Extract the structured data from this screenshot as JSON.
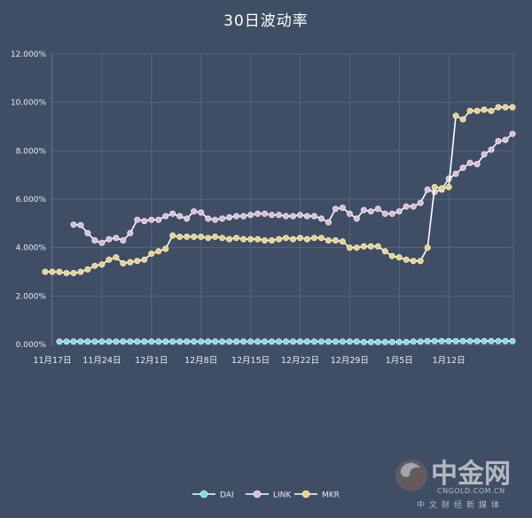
{
  "chart_data": {
    "type": "line",
    "title": "30日波动率",
    "xlabel": "",
    "ylabel": "",
    "ylim": [
      0,
      12
    ],
    "y_ticks": [
      "0.000%",
      "2.000%",
      "4.000%",
      "6.000%",
      "8.000%",
      "10.000%",
      "12.000%"
    ],
    "x_ticks": [
      "11月17日",
      "11月24日",
      "12月1日",
      "12月8日",
      "12月15日",
      "12月22日",
      "12月29日",
      "1月5日",
      "1月12日"
    ],
    "grid": true,
    "legend_position": "bottom",
    "colors": {
      "DAI": "#7fdde0",
      "LINK": "#dcbcd6",
      "MKR": "#ead37a"
    },
    "series": [
      {
        "name": "DAI",
        "values": [
          0.12,
          0.12,
          0.12,
          0.12,
          0.12,
          0.12,
          0.12,
          0.12,
          0.12,
          0.12,
          0.12,
          0.12,
          0.12,
          0.12,
          0.12,
          0.12,
          0.12,
          0.12,
          0.12,
          0.12,
          0.12,
          0.12,
          0.12,
          0.12,
          0.12,
          0.12,
          0.12,
          0.12,
          0.12,
          0.12,
          0.12,
          0.12,
          0.12,
          0.12,
          0.12,
          0.12,
          0.12,
          0.12,
          0.12,
          0.12,
          0.12,
          0.12,
          0.12,
          0.1,
          0.1,
          0.1,
          0.1,
          0.1,
          0.1,
          0.1,
          0.12,
          0.12,
          0.14,
          0.14,
          0.14,
          0.14,
          0.14,
          0.14,
          0.14,
          0.14,
          0.14,
          0.14,
          0.14,
          0.14,
          0.14
        ]
      },
      {
        "name": "LINK",
        "values": [
          4.95,
          4.93,
          4.6,
          4.3,
          4.2,
          4.35,
          4.4,
          4.3,
          4.6,
          5.15,
          5.1,
          5.15,
          5.15,
          5.3,
          5.4,
          5.3,
          5.2,
          5.5,
          5.45,
          5.2,
          5.15,
          5.2,
          5.25,
          5.3,
          5.3,
          5.35,
          5.4,
          5.4,
          5.35,
          5.35,
          5.3,
          5.3,
          5.35,
          5.3,
          5.3,
          5.2,
          5.05,
          5.6,
          5.65,
          5.4,
          5.2,
          5.55,
          5.5,
          5.6,
          5.4,
          5.4,
          5.5,
          5.7,
          5.7,
          5.85,
          6.4,
          6.3,
          6.4,
          6.85,
          7.05,
          7.3,
          7.5,
          7.45,
          7.85,
          8.05,
          8.4,
          8.45,
          8.7
        ]
      },
      {
        "name": "MKR",
        "values": [
          3.0,
          3.0,
          3.0,
          2.95,
          2.95,
          3.0,
          3.1,
          3.25,
          3.3,
          3.5,
          3.6,
          3.35,
          3.4,
          3.45,
          3.5,
          3.75,
          3.85,
          3.95,
          4.5,
          4.45,
          4.45,
          4.45,
          4.45,
          4.4,
          4.45,
          4.4,
          4.35,
          4.4,
          4.35,
          4.35,
          4.35,
          4.3,
          4.3,
          4.35,
          4.4,
          4.35,
          4.4,
          4.35,
          4.4,
          4.4,
          4.3,
          4.3,
          4.25,
          4.0,
          4.0,
          4.05,
          4.05,
          4.05,
          3.85,
          3.65,
          3.6,
          3.5,
          3.45,
          3.45,
          4.0,
          6.5,
          6.45,
          6.5,
          9.45,
          9.3,
          9.65,
          9.65,
          9.7,
          9.65,
          9.8,
          9.8,
          9.8
        ]
      }
    ]
  },
  "watermark": {
    "brand_cn": "中金网",
    "brand_en": "CNGOLD.COM.CN",
    "tagline": "中文财经新媒体"
  }
}
